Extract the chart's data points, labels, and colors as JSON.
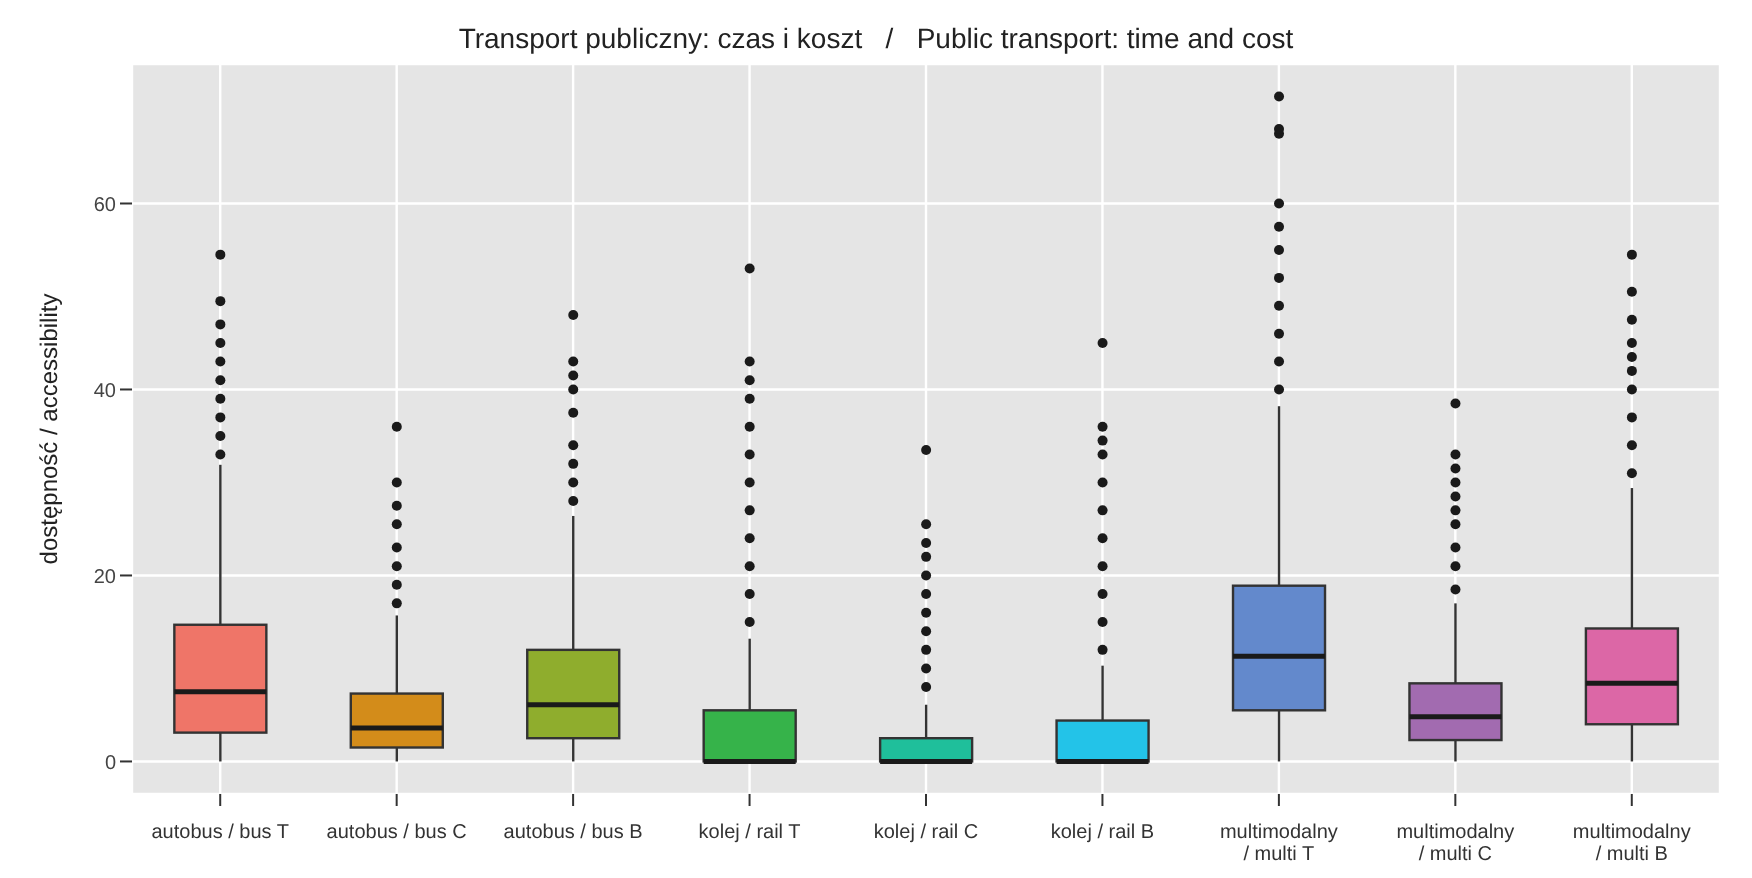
{
  "chart_data": {
    "type": "box",
    "title": "Transport publiczny: czas i koszt   /   Public transport: time and cost",
    "ylabel": "dostępność / accessibility",
    "categories": [
      "autobus / bus T",
      "autobus / bus C",
      "autobus / bus B",
      "kolej / rail T",
      "kolej / rail C",
      "kolej / rail B",
      "multimodalny / multi T",
      "multimodalny / multi C",
      "multimodalny / multi B"
    ],
    "colors": [
      "#ef7568",
      "#d38c1a",
      "#8fad2d",
      "#36b34a",
      "#1fbf9b",
      "#23c3e8",
      "#6389cc",
      "#a26bb0",
      "#dc67a6"
    ],
    "boxes": [
      {
        "low": 0,
        "q1": 3.1,
        "median": 7.5,
        "q3": 14.7,
        "high": 31.9,
        "outliers": [
          33,
          35,
          37,
          39,
          41,
          43,
          45,
          47,
          49.5,
          54.5
        ]
      },
      {
        "low": 0,
        "q1": 1.5,
        "median": 3.6,
        "q3": 7.3,
        "high": 15.7,
        "outliers": [
          17,
          19,
          21,
          23,
          25.5,
          27.5,
          30,
          36
        ]
      },
      {
        "low": 0,
        "q1": 2.5,
        "median": 6.1,
        "q3": 12,
        "high": 26.4,
        "outliers": [
          28,
          30,
          32,
          34,
          37.5,
          40,
          41.5,
          43,
          48
        ]
      },
      {
        "low": 0,
        "q1": 0,
        "median": 0,
        "q3": 5.5,
        "high": 13.2,
        "outliers": [
          15,
          18,
          21,
          24,
          27,
          30,
          33,
          36,
          39,
          41,
          43,
          53
        ]
      },
      {
        "low": 0,
        "q1": 0,
        "median": 0,
        "q3": 2.5,
        "high": 6.1,
        "outliers": [
          8,
          10,
          12,
          14,
          16,
          18,
          20,
          22,
          23.5,
          25.5,
          33.5
        ]
      },
      {
        "low": 0,
        "q1": 0,
        "median": 0,
        "q3": 4.4,
        "high": 10.3,
        "outliers": [
          12,
          15,
          18,
          21,
          24,
          27,
          30,
          33,
          34.5,
          36,
          45
        ]
      },
      {
        "low": 0,
        "q1": 5.5,
        "median": 11.3,
        "q3": 18.9,
        "high": 38.2,
        "outliers": [
          40,
          43,
          46,
          49,
          52,
          55,
          57.5,
          60,
          67.5,
          68,
          71.5
        ]
      },
      {
        "low": 0,
        "q1": 2.3,
        "median": 4.8,
        "q3": 8.4,
        "high": 17,
        "outliers": [
          18.5,
          21,
          23,
          25.5,
          27,
          28.5,
          30,
          31.5,
          33,
          38.5
        ]
      },
      {
        "low": 0,
        "q1": 4,
        "median": 8.4,
        "q3": 14.3,
        "high": 29.4,
        "outliers": [
          31,
          34,
          37,
          40,
          42,
          43.5,
          45,
          47.5,
          50.5,
          54.5
        ]
      }
    ],
    "ylim": [
      -3.5,
      75
    ],
    "yticks": [
      0,
      20,
      40,
      60
    ],
    "grid": true
  }
}
